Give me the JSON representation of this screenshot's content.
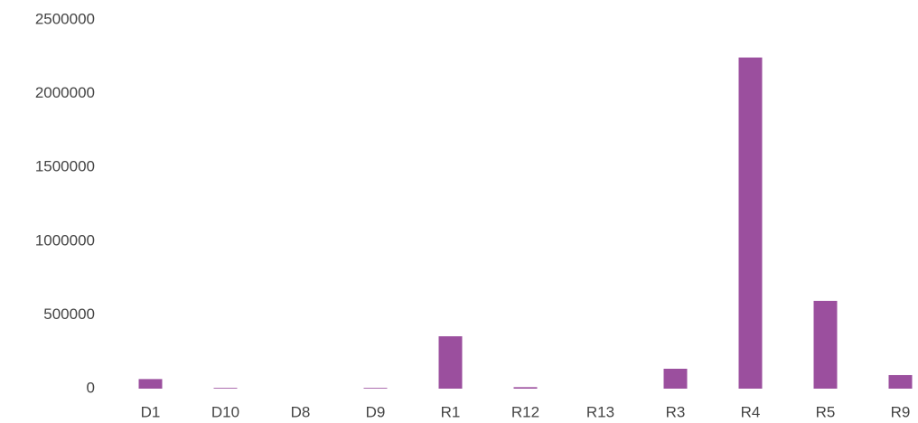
{
  "chart_data": {
    "type": "bar",
    "categories": [
      "D1",
      "D10",
      "D8",
      "D9",
      "R1",
      "R12",
      "R13",
      "R3",
      "R4",
      "R5",
      "R9"
    ],
    "values": [
      65000,
      5000,
      0,
      5000,
      355000,
      10000,
      0,
      135000,
      2245000,
      595000,
      92000
    ],
    "color": "#9b4f9e",
    "ylim": [
      0,
      2500000
    ],
    "yticks": [
      0,
      500000,
      1000000,
      1500000,
      2000000,
      2500000
    ],
    "grid": false
  }
}
